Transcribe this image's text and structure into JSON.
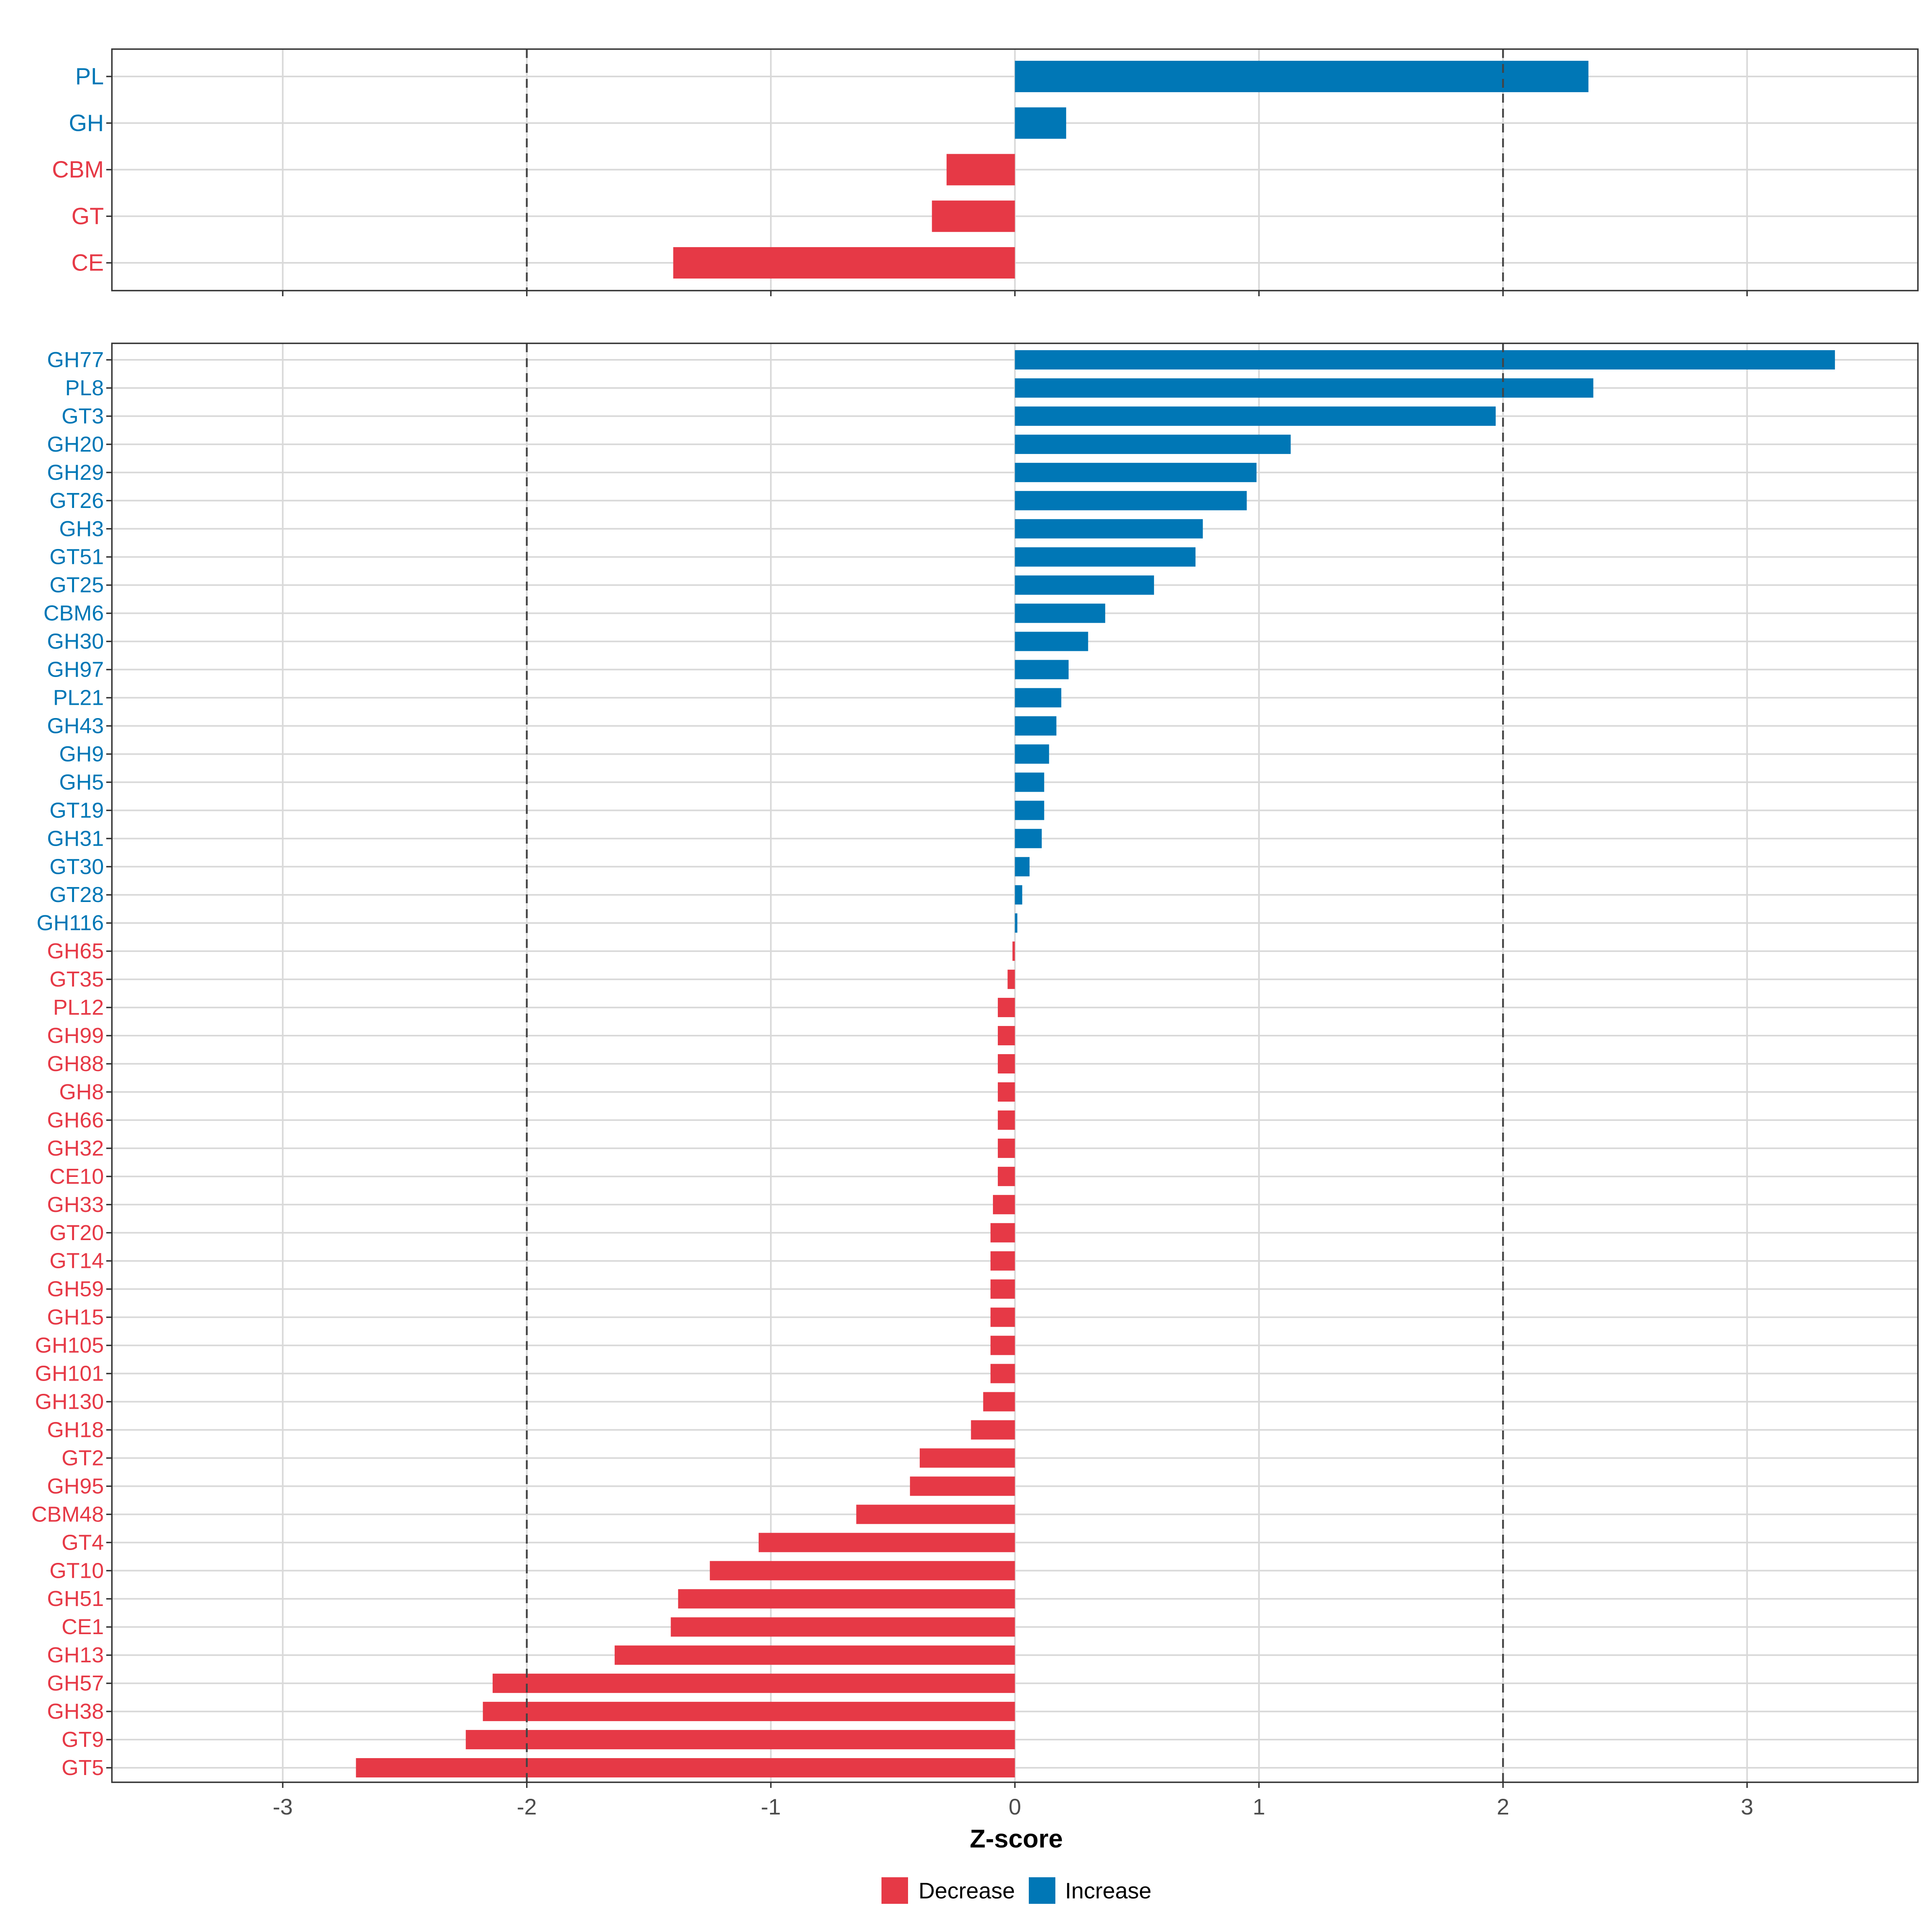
{
  "colors": {
    "decrease": "#E63946",
    "increase": "#0077B6",
    "grid": "#D9D9D9",
    "frame": "#333333",
    "tick_text": "#4D4D4D",
    "refline": "#444444"
  },
  "chart_data": [
    {
      "type": "bar",
      "orientation": "horizontal",
      "panel": "top",
      "categories": [
        "PL",
        "GH",
        "CBM",
        "GT",
        "CE"
      ],
      "values": [
        2.35,
        0.21,
        -0.28,
        -0.34,
        -1.4
      ],
      "xlim": [
        -3.7,
        3.7
      ],
      "reference_lines": [
        -2,
        2
      ],
      "grid": true
    },
    {
      "type": "bar",
      "orientation": "horizontal",
      "panel": "bottom",
      "categories": [
        "GH77",
        "PL8",
        "GT3",
        "GH20",
        "GH29",
        "GT26",
        "GH3",
        "GT51",
        "GT25",
        "CBM6",
        "GH30",
        "GH97",
        "PL21",
        "GH43",
        "GH9",
        "GH5",
        "GT19",
        "GH31",
        "GT30",
        "GT28",
        "GH116",
        "GH65",
        "GT35",
        "PL12",
        "GH99",
        "GH88",
        "GH8",
        "GH66",
        "GH32",
        "CE10",
        "GH33",
        "GT20",
        "GT14",
        "GH59",
        "GH15",
        "GH105",
        "GH101",
        "GH130",
        "GH18",
        "GT2",
        "GH95",
        "CBM48",
        "GT4",
        "GT10",
        "GH51",
        "CE1",
        "GH13",
        "GH57",
        "GH38",
        "GT9",
        "GT5"
      ],
      "values": [
        3.36,
        2.37,
        1.97,
        1.13,
        0.99,
        0.95,
        0.77,
        0.74,
        0.57,
        0.37,
        0.3,
        0.22,
        0.19,
        0.17,
        0.14,
        0.12,
        0.12,
        0.11,
        0.06,
        0.03,
        0.01,
        -0.01,
        -0.03,
        -0.07,
        -0.07,
        -0.07,
        -0.07,
        -0.07,
        -0.07,
        -0.07,
        -0.09,
        -0.1,
        -0.1,
        -0.1,
        -0.1,
        -0.1,
        -0.1,
        -0.13,
        -0.18,
        -0.39,
        -0.43,
        -0.65,
        -1.05,
        -1.25,
        -1.38,
        -1.41,
        -1.64,
        -2.14,
        -2.18,
        -2.25,
        -2.7
      ],
      "xlim": [
        -3.7,
        3.7
      ],
      "x_ticks": [
        -3,
        -2,
        -1,
        0,
        1,
        2,
        3
      ],
      "x_tick_labels": [
        "-3",
        "-2",
        "-1",
        "0",
        "1",
        "2",
        "3"
      ],
      "xlabel": "Z-score",
      "reference_lines": [
        -2,
        2
      ],
      "grid": true
    }
  ],
  "legend": {
    "position": "bottom",
    "items": [
      {
        "label": "Decrease",
        "color": "#E63946"
      },
      {
        "label": "Increase",
        "color": "#0077B6"
      }
    ]
  }
}
